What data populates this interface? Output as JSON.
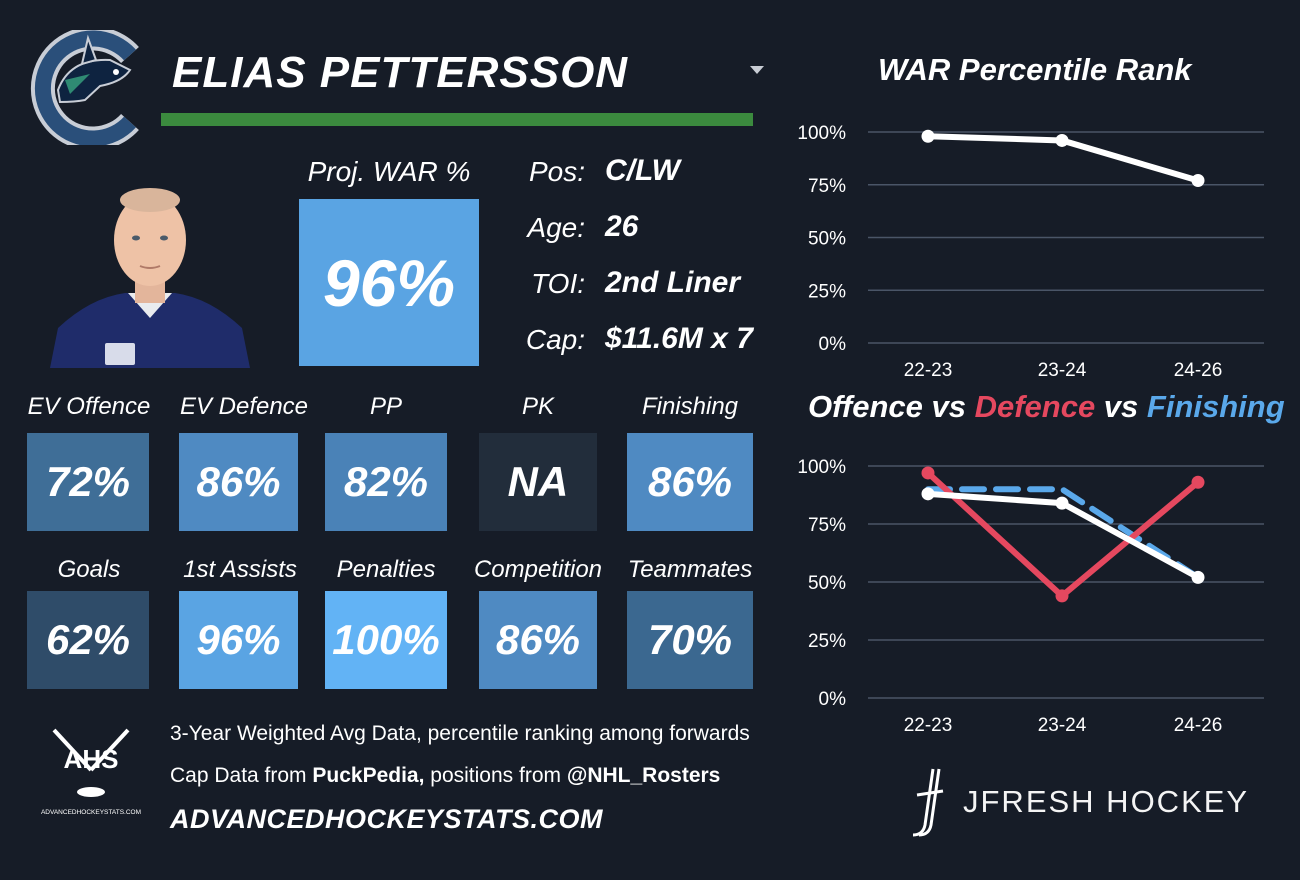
{
  "player": {
    "name": "ELIAS PETTERSSON",
    "proj_war_label": "Proj. WAR %",
    "proj_war_value": "96%",
    "info": [
      {
        "label": "Pos:",
        "value": "C/LW"
      },
      {
        "label": "Age:",
        "value": "26"
      },
      {
        "label": "TOI:",
        "value": "2nd Liner"
      },
      {
        "label": "Cap:",
        "value": "$11.6M x 7"
      }
    ]
  },
  "colors": {
    "name_bar": "#3b8a3e",
    "proj_box": "#5aa4e3",
    "white_line": "#ffffff",
    "defence_line": "#e5485f",
    "finishing_line": "#5aa8ea",
    "grid": "#4a5567"
  },
  "stats_row1": [
    {
      "label": "EV Offence",
      "value": "72%",
      "color": "#3f6e97"
    },
    {
      "label": "EV Defence",
      "value": "86%",
      "color": "#4f8ac2"
    },
    {
      "label": "PP",
      "value": "82%",
      "color": "#4a82b7"
    },
    {
      "label": "PK",
      "value": "NA",
      "color": "#222d3b"
    },
    {
      "label": "Finishing",
      "value": "86%",
      "color": "#4f8ac2"
    }
  ],
  "stats_row2": [
    {
      "label": "Goals",
      "value": "62%",
      "color": "#2f4c69"
    },
    {
      "label": "1st Assists",
      "value": "96%",
      "color": "#5aa4e3"
    },
    {
      "label": "Penalties",
      "value": "100%",
      "color": "#62b3f5"
    },
    {
      "label": "Competition",
      "value": "86%",
      "color": "#4f8ac2"
    },
    {
      "label": "Teammates",
      "value": "70%",
      "color": "#3b6890"
    }
  ],
  "footer": {
    "line1": "3-Year Weighted Avg Data, percentile ranking among forwards",
    "line2_prefix": "Cap Data from ",
    "line2_bold1": "PuckPedia,",
    "line2_mid": " positions from ",
    "line2_bold2": "@NHL_Rosters",
    "site": "ADVANCEDHOCKEYSTATS.COM",
    "ahs_logo": "AHS",
    "ahs_logo_sub": "ADVANCEDHOCKEYSTATS.COM",
    "brand": "JFRESH HOCKEY"
  },
  "icons": {
    "team_logo": "orca-logo-icon",
    "player_photo": "player-headshot",
    "ahs": "crossed-sticks-icon",
    "jfresh": "hockey-stick-icon"
  },
  "chart_data": [
    {
      "type": "line",
      "title": "WAR Percentile Rank",
      "x": [
        "22-23",
        "23-24",
        "24-26"
      ],
      "yticks": [
        "100%",
        "75%",
        "50%",
        "25%",
        "0%"
      ],
      "ylim": [
        0,
        100
      ],
      "grid": true,
      "series": [
        {
          "values": [
            98,
            96,
            77
          ],
          "color": "#ffffff"
        }
      ]
    },
    {
      "type": "line",
      "title_parts": [
        "Offence",
        " vs ",
        "Defence",
        " vs ",
        "Finishing"
      ],
      "x": [
        "22-23",
        "23-24",
        "24-26"
      ],
      "yticks": [
        "100%",
        "75%",
        "50%",
        "25%",
        "0%"
      ],
      "ylim": [
        0,
        100
      ],
      "grid": true,
      "series": [
        {
          "name": "Finishing",
          "values": [
            90,
            90,
            52
          ],
          "color": "#5aa8ea",
          "dashed": true
        },
        {
          "name": "Defence",
          "values": [
            97,
            44,
            93
          ],
          "color": "#e5485f"
        },
        {
          "name": "Offence",
          "values": [
            88,
            84,
            52
          ],
          "color": "#ffffff"
        }
      ]
    }
  ]
}
